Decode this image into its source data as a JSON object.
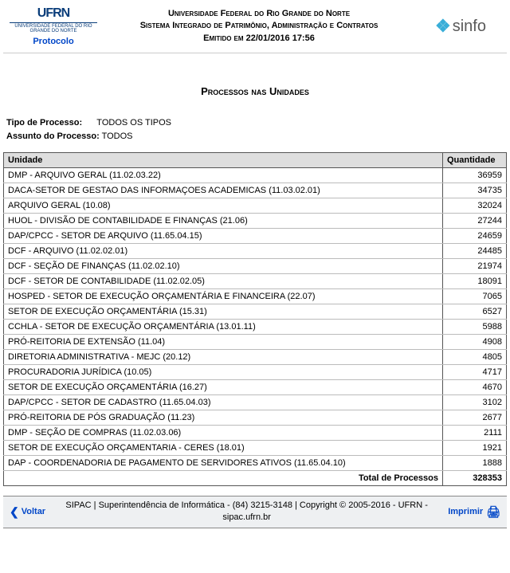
{
  "header": {
    "left": {
      "logo_text": "UFRN",
      "logo_subtext": "UNIVERSIDADE FEDERAL DO RIO GRANDE DO NORTE",
      "protocolo_label": "Protocolo"
    },
    "center": {
      "line1": "Universidade Federal do Rio Grande do Norte",
      "line2": "Sistema Integrado de Patrimônio, Administração e Contratos",
      "line3": "Emitido em 22/01/2016 17:56"
    },
    "right": {
      "sinfo_text": "sinfo"
    }
  },
  "title": "Processos nas Unidades",
  "filters": {
    "tipo_label": "Tipo de Processo:",
    "tipo_value": "TODOS OS TIPOS",
    "assunto_label": "Assunto do Processo:",
    "assunto_value": "TODOS"
  },
  "table": {
    "columns": [
      "Unidade",
      "Quantidade"
    ],
    "rows": [
      [
        "DMP - ARQUIVO GERAL (11.02.03.22)",
        "36959"
      ],
      [
        "DACA-SETOR DE GESTAO DAS INFORMAÇOES ACADEMICAS (11.03.02.01)",
        "34735"
      ],
      [
        "ARQUIVO GERAL (10.08)",
        "32024"
      ],
      [
        "HUOL - DIVISÃO DE CONTABILIDADE E FINANÇAS (21.06)",
        "27244"
      ],
      [
        "DAP/CPCC - SETOR DE ARQUIVO (11.65.04.15)",
        "24659"
      ],
      [
        "DCF - ARQUIVO (11.02.02.01)",
        "24485"
      ],
      [
        "DCF - SEÇÃO DE FINANÇAS (11.02.02.10)",
        "21974"
      ],
      [
        "DCF - SETOR DE CONTABILIDADE (11.02.02.05)",
        "18091"
      ],
      [
        "HOSPED - SETOR DE EXECUÇÃO ORÇAMENTÁRIA E FINANCEIRA (22.07)",
        "7065"
      ],
      [
        "SETOR DE EXECUÇÃO ORÇAMENTÁRIA (15.31)",
        "6527"
      ],
      [
        "CCHLA - SETOR DE EXECUÇÃO ORÇAMENTÁRIA (13.01.11)",
        "5988"
      ],
      [
        "PRÓ-REITORIA DE EXTENSÃO (11.04)",
        "4908"
      ],
      [
        "DIRETORIA ADMINISTRATIVA - MEJC (20.12)",
        "4805"
      ],
      [
        "PROCURADORIA JURÍDICA (10.05)",
        "4717"
      ],
      [
        "SETOR DE EXECUÇÃO ORÇAMENTÁRIA (16.27)",
        "4670"
      ],
      [
        "DAP/CPCC - SETOR DE CADASTRO (11.65.04.03)",
        "3102"
      ],
      [
        "PRÓ-REITORIA DE PÓS GRADUAÇÃO (11.23)",
        "2677"
      ],
      [
        "DMP - SEÇÃO DE COMPRAS (11.02.03.06)",
        "2111"
      ],
      [
        "SETOR DE EXECUÇÃO ORÇAMENTARIA - CERES (18.01)",
        "1921"
      ],
      [
        "DAP - COORDENADORIA DE PAGAMENTO DE SERVIDORES ATIVOS (11.65.04.10)",
        "1888"
      ]
    ],
    "total_label": "Total de Processos",
    "total_value": "328353"
  },
  "footer": {
    "back_label": "Voltar",
    "center_text": "SIPAC | Superintendência de Informática - (84) 3215-3148 | Copyright © 2005-2016 - UFRN - sipac.ufrn.br",
    "print_label": "Imprimir"
  },
  "colors": {
    "link": "#0046c8",
    "header_bg": "#dedede",
    "border_dark": "#555",
    "border_light": "#bbb",
    "footer_bg": "#eef0f2",
    "sinfo_icon": "#3aaed8"
  }
}
